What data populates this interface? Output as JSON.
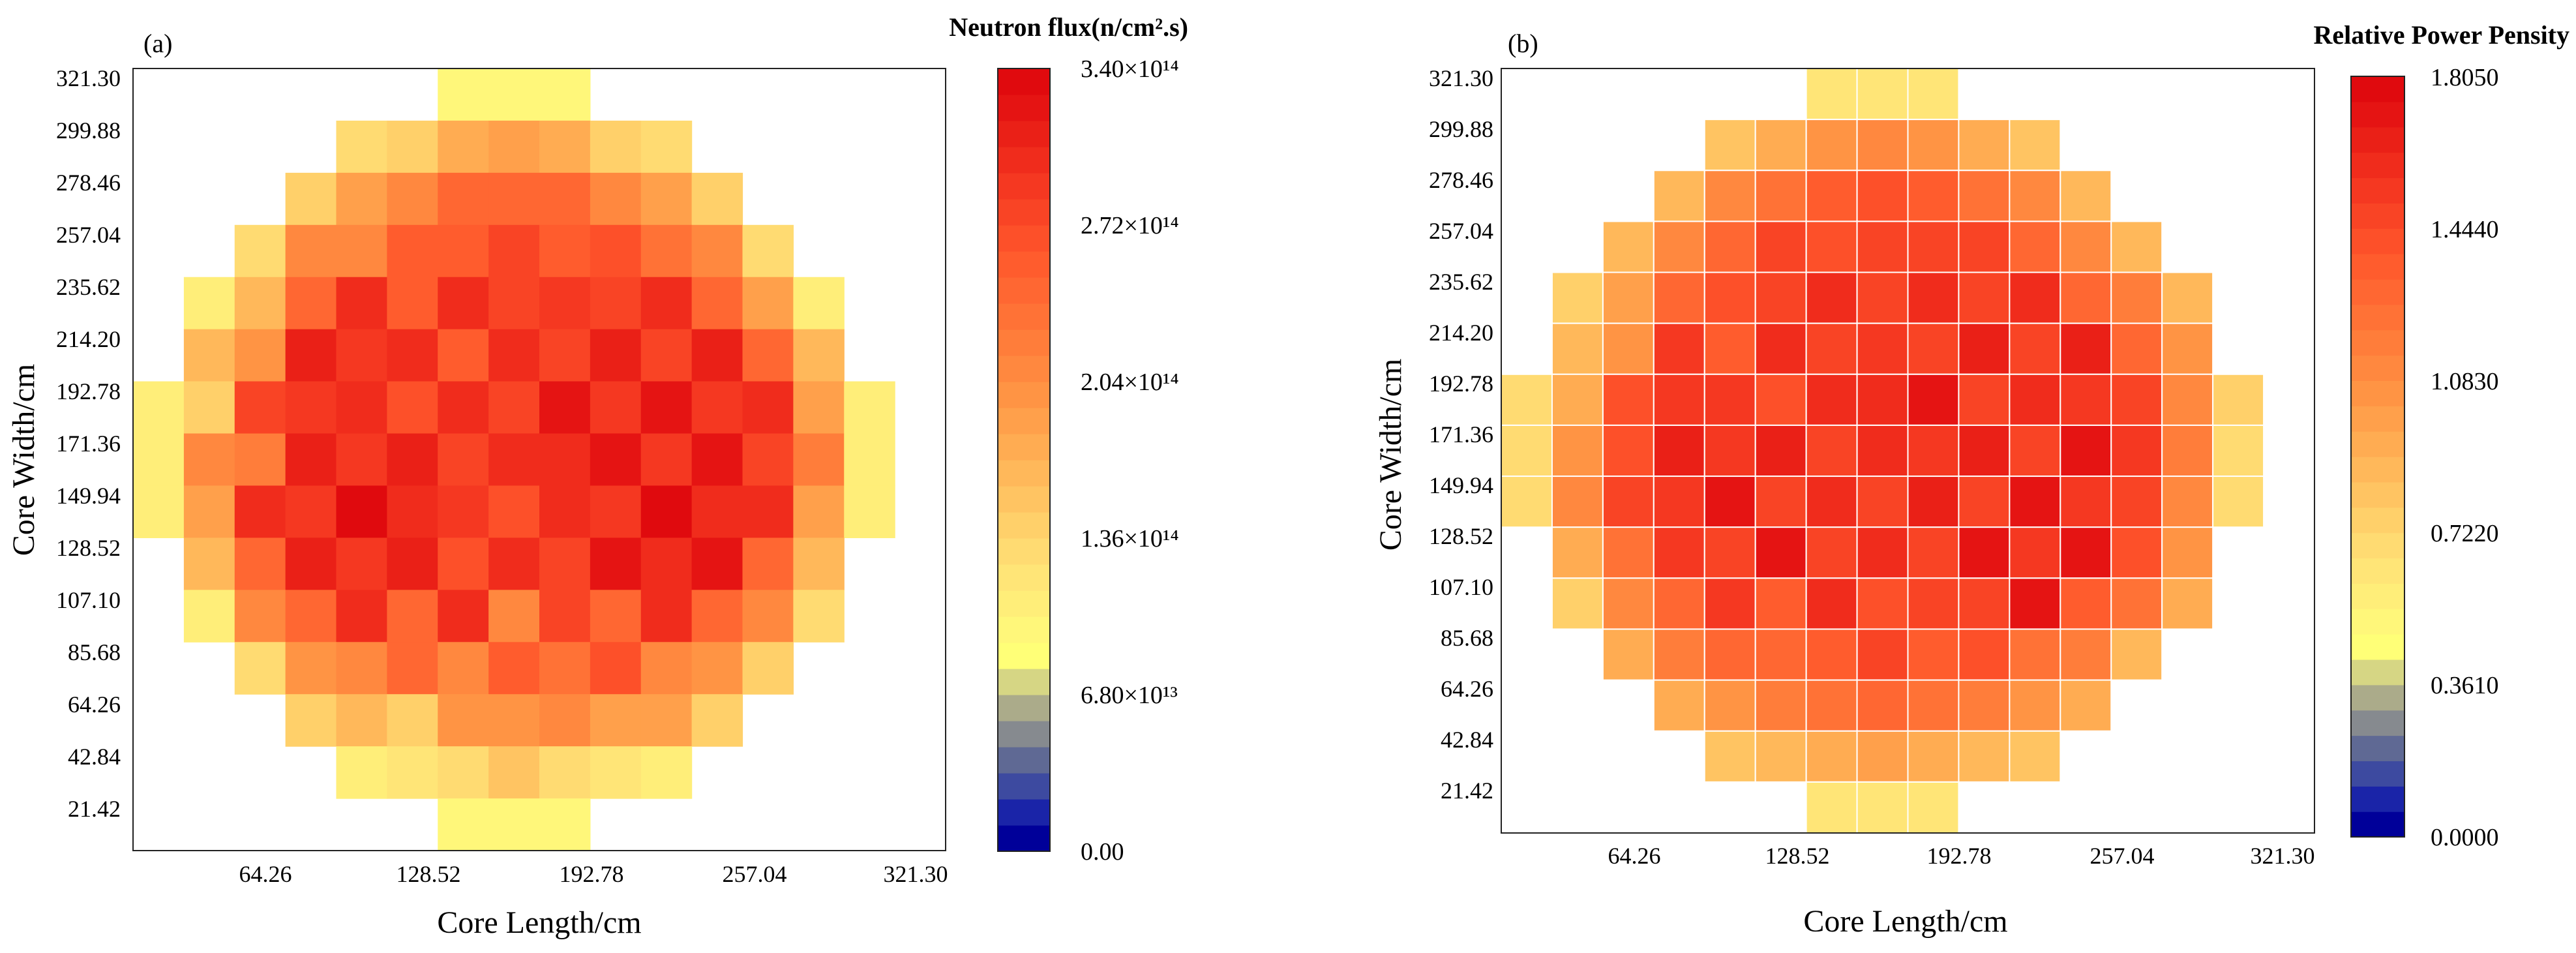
{
  "figure": {
    "panels": [
      {
        "id": "a",
        "panel_label": "(a)",
        "colorbar_title": "Neutron flux(n/cm².s)",
        "colorbar_ticks": [
          {
            "label": "0.00",
            "value": 0
          },
          {
            "label": "6.80×10¹³",
            "value": 0.68
          },
          {
            "label": "1.36×10¹⁴",
            "value": 1.36
          },
          {
            "label": "2.04×10¹⁴",
            "value": 2.04
          },
          {
            "label": "2.72×10¹⁴",
            "value": 2.72
          },
          {
            "label": "3.40×10¹⁴",
            "value": 3.4
          }
        ]
      },
      {
        "id": "b",
        "panel_label": "(b)",
        "colorbar_title": "Relative Power Pensity",
        "colorbar_ticks": [
          {
            "label": "0.0000",
            "value": 0
          },
          {
            "label": "0.3610",
            "value": 0.361
          },
          {
            "label": "0.7220",
            "value": 0.722
          },
          {
            "label": "1.0830",
            "value": 1.083
          },
          {
            "label": "1.4440",
            "value": 1.444
          },
          {
            "label": "1.8050",
            "value": 1.805
          }
        ]
      }
    ]
  },
  "chart_data": [
    {
      "type": "heatmap",
      "panel": "(a)",
      "title": "Neutron flux(n/cm².s)",
      "xlabel": "Core Length/cm",
      "ylabel": "Core Width/cm",
      "x_ticks": [
        "64.26",
        "128.52",
        "192.78",
        "257.04",
        "321.30"
      ],
      "y_ticks": [
        "21.42",
        "42.84",
        "64.26",
        "85.68",
        "107.10",
        "128.52",
        "149.94",
        "171.36",
        "192.78",
        "214.20",
        "235.62",
        "257.04",
        "278.46",
        "299.88",
        "321.30"
      ],
      "grid_lines": false,
      "value_unit": "x1e14 n/cm2.s",
      "vmin": 0,
      "vmax": 3.4,
      "rows_top_to_bottom": [
        [
          null,
          null,
          null,
          null,
          null,
          null,
          0.95,
          0.98,
          0.95,
          null,
          null,
          null,
          null,
          null,
          null,
          null
        ],
        [
          null,
          null,
          null,
          null,
          1.25,
          1.45,
          1.7,
          1.85,
          1.7,
          1.45,
          1.25,
          null,
          null,
          null,
          null,
          null
        ],
        [
          null,
          null,
          null,
          1.4,
          1.85,
          2.05,
          2.4,
          2.45,
          2.4,
          2.05,
          1.85,
          1.4,
          null,
          null,
          null,
          null
        ],
        [
          null,
          null,
          1.35,
          2.05,
          2.15,
          2.55,
          2.6,
          2.8,
          2.55,
          2.7,
          2.3,
          2.05,
          1.35,
          null,
          null,
          null
        ],
        [
          null,
          1.05,
          1.6,
          2.45,
          2.95,
          2.55,
          2.95,
          2.75,
          2.9,
          2.75,
          2.95,
          2.45,
          1.85,
          1.05,
          null,
          null
        ],
        [
          null,
          1.6,
          1.95,
          3.15,
          2.85,
          3.05,
          2.55,
          2.95,
          2.75,
          3.1,
          2.75,
          3.15,
          2.45,
          1.6,
          null,
          null
        ],
        [
          1.05,
          1.4,
          2.75,
          2.9,
          3.05,
          2.65,
          2.95,
          2.75,
          3.25,
          2.85,
          3.2,
          2.85,
          2.95,
          1.85,
          1.05,
          null
        ],
        [
          1.05,
          2.15,
          2.2,
          3.1,
          2.85,
          3.15,
          2.75,
          3.05,
          2.95,
          3.2,
          2.85,
          3.25,
          2.75,
          2.25,
          1.05,
          null
        ],
        [
          1.05,
          1.85,
          2.95,
          2.9,
          3.3,
          3.05,
          2.9,
          2.65,
          3.05,
          2.85,
          3.3,
          2.95,
          3.05,
          1.85,
          1.05,
          null
        ],
        [
          null,
          1.65,
          2.45,
          3.1,
          2.85,
          3.15,
          2.65,
          2.95,
          2.75,
          3.25,
          2.95,
          3.25,
          2.45,
          1.65,
          null,
          null
        ],
        [
          null,
          1.05,
          2.05,
          2.45,
          3.05,
          2.45,
          2.95,
          2.15,
          2.75,
          2.45,
          3.05,
          2.45,
          2.05,
          1.35,
          null,
          null
        ],
        [
          null,
          null,
          1.35,
          1.95,
          2.1,
          2.45,
          2.05,
          2.55,
          2.3,
          2.7,
          2.05,
          1.95,
          1.4,
          null,
          null,
          null
        ],
        [
          null,
          null,
          null,
          1.4,
          1.65,
          1.45,
          1.95,
          1.95,
          2.05,
          1.85,
          1.85,
          1.4,
          null,
          null,
          null,
          null
        ],
        [
          null,
          null,
          null,
          null,
          1.05,
          1.2,
          1.35,
          1.55,
          1.35,
          1.2,
          1.05,
          null,
          null,
          null,
          null,
          null
        ],
        [
          null,
          null,
          null,
          null,
          null,
          null,
          0.95,
          0.98,
          0.95,
          null,
          null,
          null,
          null,
          null,
          null,
          null
        ]
      ]
    },
    {
      "type": "heatmap",
      "panel": "(b)",
      "title": "Relative Power Pensity",
      "xlabel": "Core Length/cm",
      "ylabel": "Core Width/cm",
      "x_ticks": [
        "64.26",
        "128.52",
        "192.78",
        "257.04",
        "321.30"
      ],
      "y_ticks": [
        "21.42",
        "42.84",
        "64.26",
        "85.68",
        "107.10",
        "128.52",
        "149.94",
        "171.36",
        "192.78",
        "214.20",
        "235.62",
        "257.04",
        "278.46",
        "299.88",
        "321.30"
      ],
      "grid_lines": true,
      "value_unit": "relative",
      "vmin": 0,
      "vmax": 1.805,
      "rows_top_to_bottom": [
        [
          null,
          null,
          null,
          null,
          null,
          null,
          0.62,
          0.65,
          0.62,
          null,
          null,
          null,
          null,
          null,
          null,
          null
        ],
        [
          null,
          null,
          null,
          null,
          0.8,
          0.95,
          1.05,
          1.1,
          1.05,
          0.95,
          0.8,
          null,
          null,
          null,
          null,
          null
        ],
        [
          null,
          null,
          null,
          0.9,
          1.1,
          1.25,
          1.35,
          1.4,
          1.35,
          1.25,
          1.1,
          0.9,
          null,
          null,
          null,
          null
        ],
        [
          null,
          null,
          0.9,
          1.1,
          1.3,
          1.45,
          1.4,
          1.45,
          1.5,
          1.5,
          1.3,
          1.1,
          0.9,
          null,
          null,
          null
        ],
        [
          null,
          0.75,
          1.0,
          1.3,
          1.4,
          1.45,
          1.6,
          1.5,
          1.6,
          1.5,
          1.6,
          1.3,
          1.2,
          0.9,
          null,
          null
        ],
        [
          null,
          0.9,
          1.05,
          1.55,
          1.35,
          1.6,
          1.5,
          1.55,
          1.45,
          1.65,
          1.5,
          1.65,
          1.3,
          1.05,
          null,
          null
        ],
        [
          0.7,
          0.95,
          1.4,
          1.55,
          1.55,
          1.4,
          1.6,
          1.6,
          1.7,
          1.45,
          1.6,
          1.55,
          1.45,
          1.1,
          0.75,
          null
        ],
        [
          0.7,
          1.05,
          1.4,
          1.65,
          1.55,
          1.65,
          1.5,
          1.6,
          1.55,
          1.65,
          1.5,
          1.7,
          1.55,
          1.2,
          0.7,
          null
        ],
        [
          0.7,
          1.1,
          1.45,
          1.55,
          1.7,
          1.5,
          1.6,
          1.5,
          1.65,
          1.5,
          1.7,
          1.55,
          1.45,
          1.1,
          0.7,
          null
        ],
        [
          null,
          0.95,
          1.25,
          1.55,
          1.45,
          1.7,
          1.45,
          1.6,
          1.5,
          1.7,
          1.55,
          1.7,
          1.4,
          1.05,
          null,
          null
        ],
        [
          null,
          0.75,
          1.1,
          1.3,
          1.55,
          1.35,
          1.6,
          1.4,
          1.5,
          1.45,
          1.7,
          1.35,
          1.25,
          0.95,
          null,
          null
        ],
        [
          null,
          null,
          0.95,
          1.2,
          1.3,
          1.3,
          1.35,
          1.45,
          1.35,
          1.4,
          1.25,
          1.2,
          0.9,
          null,
          null,
          null
        ],
        [
          null,
          null,
          null,
          0.95,
          1.05,
          1.15,
          1.25,
          1.3,
          1.25,
          1.15,
          1.05,
          0.95,
          null,
          null,
          null,
          null
        ],
        [
          null,
          null,
          null,
          null,
          0.8,
          0.9,
          0.95,
          1.0,
          0.95,
          0.9,
          0.8,
          null,
          null,
          null,
          null,
          null
        ],
        [
          null,
          null,
          null,
          null,
          null,
          null,
          0.62,
          0.65,
          0.62,
          null,
          null,
          null,
          null,
          null,
          null,
          null
        ]
      ]
    }
  ]
}
